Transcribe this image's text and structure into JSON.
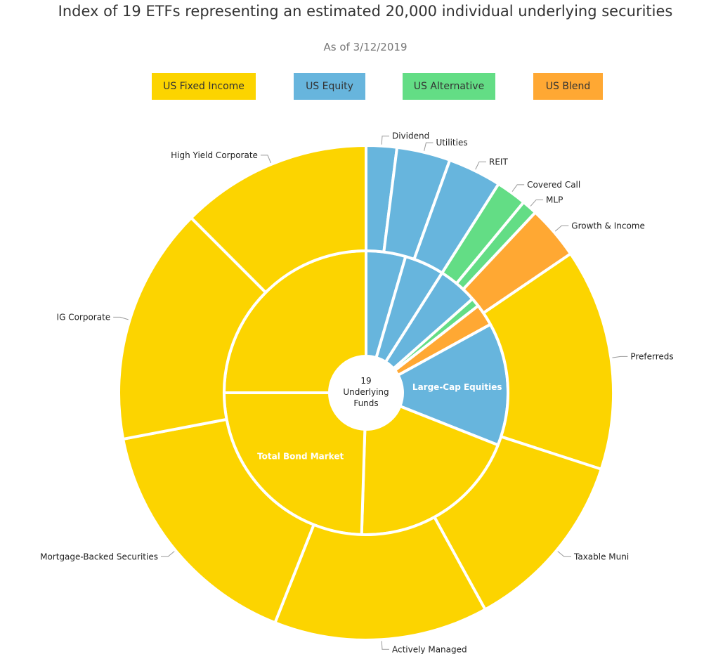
{
  "chart_data": {
    "type": "sunburst",
    "title": "Index of 19 ETFs representing an estimated 20,000 individual underlying securities",
    "subtitle": "As of 3/12/2019",
    "center_label": [
      "19",
      "Underlying",
      "Funds"
    ],
    "legend": [
      {
        "label": "US Fixed Income",
        "color": "#FCD400"
      },
      {
        "label": "US Equity",
        "color": "#67B5DD"
      },
      {
        "label": "US Alternative",
        "color": "#63DD85"
      },
      {
        "label": "US Blend",
        "color": "#FFA833"
      }
    ],
    "inner_ring": [
      {
        "label": "",
        "category": "US Equity",
        "value": 4.5
      },
      {
        "label": "",
        "category": "US Equity",
        "value": 4.5
      },
      {
        "label": "",
        "category": "US Equity",
        "value": 4.5
      },
      {
        "label": "",
        "category": "US Alternative",
        "value": 1.0
      },
      {
        "label": "",
        "category": "US Blend",
        "value": 2.5
      },
      {
        "label": "Large-Cap Equities",
        "category": "US Equity",
        "value": 14.0
      },
      {
        "label": "",
        "category": "US Fixed Income",
        "value": 19.5
      },
      {
        "label": "Total Bond Market",
        "category": "US Fixed Income",
        "value": 24.5
      },
      {
        "label": "",
        "category": "US Fixed Income",
        "value": 25.0
      }
    ],
    "outer_ring": [
      {
        "label": "Dividend",
        "category": "US Equity",
        "value": 2.0
      },
      {
        "label": "Utilities",
        "category": "US Equity",
        "value": 3.5
      },
      {
        "label": "REIT",
        "category": "US Equity",
        "value": 3.5
      },
      {
        "label": "Covered Call",
        "category": "US Alternative",
        "value": 2.0
      },
      {
        "label": "MLP",
        "category": "US Alternative",
        "value": 1.0
      },
      {
        "label": "Growth & Income",
        "category": "US Blend",
        "value": 3.5
      },
      {
        "label": "Preferreds",
        "category": "US Fixed Income",
        "value": 14.5
      },
      {
        "label": "Taxable Muni",
        "category": "US Fixed Income",
        "value": 12.0
      },
      {
        "label": "Actively Managed",
        "category": "US Fixed Income",
        "value": 14.0
      },
      {
        "label": "Mortgage-Backed Securities",
        "category": "US Fixed Income",
        "value": 16.0
      },
      {
        "label": "IG Corporate",
        "category": "US Fixed Income",
        "value": 15.5
      },
      {
        "label": "High Yield Corporate",
        "category": "US Fixed Income",
        "value": 12.5
      }
    ]
  }
}
